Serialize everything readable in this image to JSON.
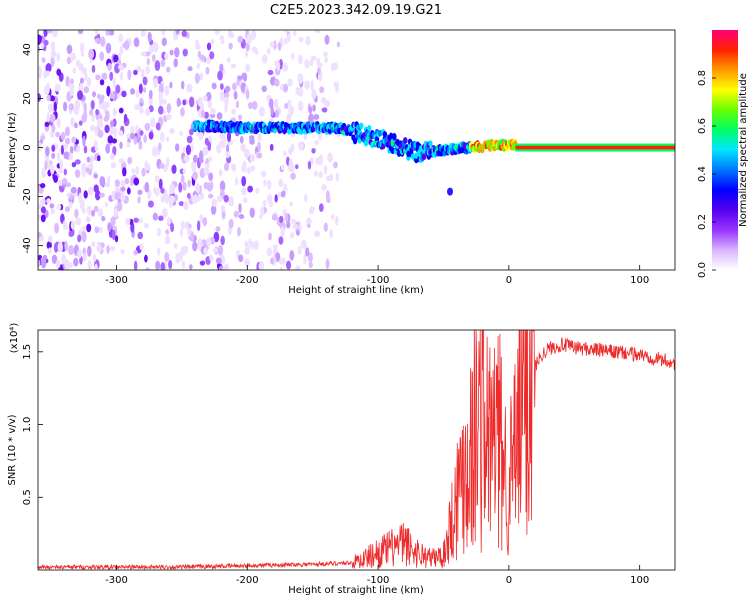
{
  "title": "C2E5.2023.342.09.19.G21",
  "chart_data": [
    {
      "type": "heatmap",
      "xlabel": "Height of straight line (km)",
      "ylabel": "Frequency (Hz)",
      "xlim": [
        -360,
        127
      ],
      "ylim": [
        -50,
        48
      ],
      "xticks": [
        "-300",
        "-200",
        "-100",
        "0",
        "100"
      ],
      "yticks": [
        "40",
        "20",
        "0",
        "-20",
        "-40"
      ],
      "colorbar": {
        "label": "Normalized spectral amplitude",
        "range": [
          0,
          1
        ],
        "ticks": [
          "0.0",
          "0.2",
          "0.4",
          "0.6",
          "0.8"
        ],
        "colors": [
          "#ffffff",
          "#d9b3ff",
          "#9933ff",
          "#5500ee",
          "#0000ff",
          "#0077ff",
          "#00e5ff",
          "#00ff66",
          "#66ff00",
          "#ffff00",
          "#ff9900",
          "#ff2200",
          "#ff007a"
        ]
      },
      "noise_region_x": [
        -360,
        -130
      ],
      "signal_track": [
        {
          "x": -240,
          "y": 9
        },
        {
          "x": -200,
          "y": 8
        },
        {
          "x": -160,
          "y": 8
        },
        {
          "x": -130,
          "y": 8
        },
        {
          "x": -110,
          "y": 5
        },
        {
          "x": -90,
          "y": 2
        },
        {
          "x": -70,
          "y": -2
        },
        {
          "x": -50,
          "y": -1
        },
        {
          "x": -30,
          "y": 0
        },
        {
          "x": -10,
          "y": 1
        },
        {
          "x": 5,
          "y": 1
        },
        {
          "x": 127,
          "y": 0
        }
      ],
      "isolated_blob": {
        "x": -45,
        "y": -18
      },
      "carrier_from_x": 5
    },
    {
      "type": "line",
      "xlabel": "Height of straight line (km)",
      "ylabel": "SNR (10 * v/v)",
      "y_multiplier": "(x10⁴)",
      "xlim": [
        -360,
        127
      ],
      "ylim": [
        0,
        1.65
      ],
      "xticks": [
        "-300",
        "-200",
        "-100",
        "0",
        "100"
      ],
      "yticks": [
        "0.5",
        "1.0",
        "1.5"
      ],
      "line_color": "#ee2a2a",
      "series": [
        {
          "x": [
            -360,
            -300,
            -250,
            -200,
            -150,
            -120,
            -110,
            -100,
            -90,
            -80,
            -70,
            -60,
            -50,
            -45,
            -40,
            -35,
            -30,
            -25,
            -20,
            -15,
            -10,
            -5,
            0,
            5,
            10,
            15,
            20,
            25,
            30,
            40,
            50,
            60,
            70,
            80,
            90,
            100,
            110,
            120,
            127
          ],
          "y": [
            0.02,
            0.02,
            0.02,
            0.03,
            0.04,
            0.05,
            0.08,
            0.12,
            0.15,
            0.18,
            0.12,
            0.08,
            0.1,
            0.3,
            0.5,
            0.7,
            0.8,
            1.0,
            1.05,
            0.85,
            0.95,
            0.8,
            0.6,
            0.8,
            1.2,
            1.3,
            1.4,
            1.48,
            1.52,
            1.55,
            1.53,
            1.52,
            1.51,
            1.5,
            1.49,
            1.48,
            1.46,
            1.44,
            1.42
          ]
        }
      ]
    }
  ]
}
